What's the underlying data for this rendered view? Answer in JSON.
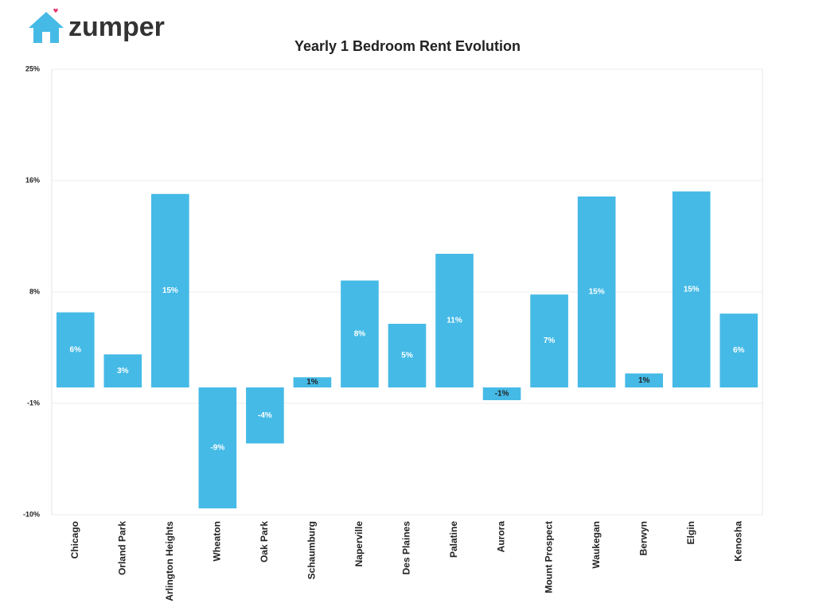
{
  "logo": "zumper",
  "chart_data": {
    "type": "bar",
    "title": "Yearly 1 Bedroom Rent Evolution",
    "categories": [
      "Chicago",
      "Orland Park",
      "Arlington Heights",
      "Wheaton",
      "Oak Park",
      "Schaumburg",
      "Naperville",
      "Des Plaines",
      "Palatine",
      "Aurora",
      "Mount Prospect",
      "Waukegan",
      "Berwyn",
      "Elgin",
      "Kenosha"
    ],
    "values": [
      5.9,
      2.6,
      15.2,
      -9.5,
      -4.4,
      0.8,
      8.4,
      5.0,
      10.5,
      -1.0,
      7.3,
      15.0,
      1.1,
      15.4,
      5.8
    ],
    "value_labels": [
      "6%",
      "3%",
      "15%",
      "-9%",
      "-4%",
      "1%",
      "8%",
      "5%",
      "11%",
      "-1%",
      "7%",
      "15%",
      "1%",
      "15%",
      "6%"
    ],
    "color": "#45bae6",
    "ylim": [
      -10,
      25
    ],
    "yticks": [
      {
        "value": -10,
        "label": "-10%"
      },
      {
        "value": -1.25,
        "label": "-1%"
      },
      {
        "value": 7.5,
        "label": "8%"
      },
      {
        "value": 16.25,
        "label": "16%"
      },
      {
        "value": 25,
        "label": "25%"
      }
    ],
    "grid": true
  }
}
